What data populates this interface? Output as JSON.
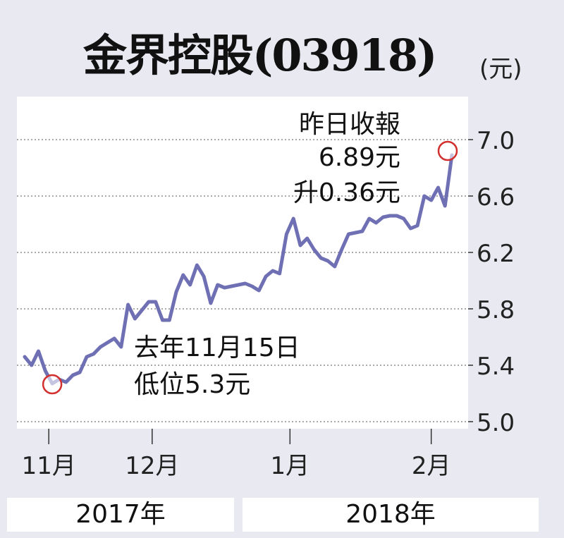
{
  "header": {
    "title": "金界控股(03918)",
    "unit": "(元)"
  },
  "chart_data": {
    "type": "line",
    "title": "金界控股(03918)",
    "ylabel": "(元)",
    "ylim": [
      5.0,
      7.0
    ],
    "y_ticks": [
      "5.0",
      "5.4",
      "5.8",
      "6.2",
      "6.6",
      "7.0"
    ],
    "x_ticks": [
      "11月",
      "12月",
      "1月",
      "2月"
    ],
    "years": [
      "2017年",
      "2018年"
    ],
    "grid": true,
    "series": [
      {
        "color": "#6f6fb4",
        "values": [
          5.46,
          5.4,
          5.5,
          5.36,
          5.27,
          5.3,
          5.28,
          5.33,
          5.35,
          5.46,
          5.48,
          5.53,
          5.56,
          5.59,
          5.53,
          5.83,
          5.73,
          5.79,
          5.85,
          5.85,
          5.72,
          5.72,
          5.92,
          6.04,
          5.97,
          6.11,
          6.03,
          5.84,
          5.97,
          5.95,
          5.96,
          5.97,
          5.98,
          5.96,
          5.93,
          6.03,
          6.07,
          6.05,
          6.33,
          6.44,
          6.25,
          6.3,
          6.22,
          6.16,
          6.14,
          6.1,
          6.22,
          6.33,
          6.34,
          6.35,
          6.44,
          6.41,
          6.45,
          6.46,
          6.46,
          6.44,
          6.37,
          6.39,
          6.6,
          6.57,
          6.66,
          6.53,
          6.89
        ]
      }
    ],
    "annotations": [
      {
        "lines": [
          "去年11月15日",
          "低位5.3元"
        ]
      },
      {
        "lines": [
          "昨日收報",
          "6.89元",
          "升0.36元"
        ]
      }
    ],
    "marker_color": "#d32f2f"
  }
}
